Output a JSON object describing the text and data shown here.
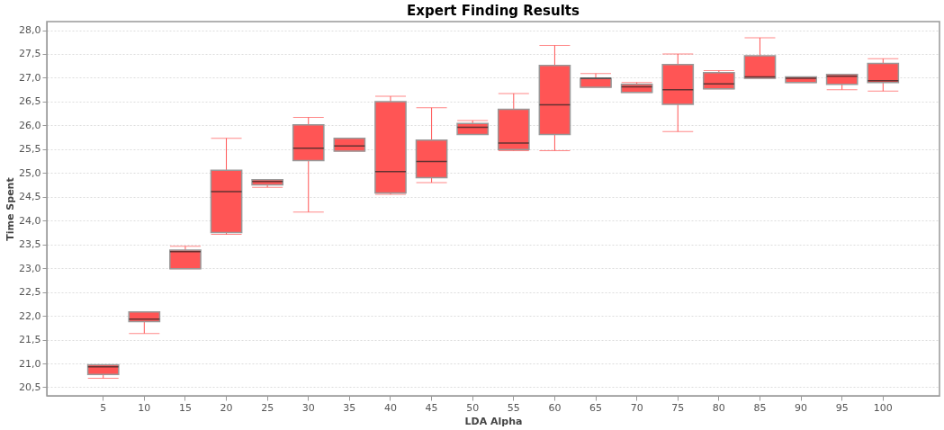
{
  "chart_data": {
    "type": "box",
    "title": "Expert Finding Results",
    "xlabel": "LDA Alpha",
    "ylabel": "Time Spent",
    "categories": [
      "5",
      "10",
      "15",
      "20",
      "25",
      "30",
      "35",
      "40",
      "45",
      "50",
      "55",
      "60",
      "65",
      "70",
      "75",
      "80",
      "85",
      "90",
      "95",
      "100"
    ],
    "series": [
      {
        "color": "#ff5555",
        "boxes": [
          {
            "low": 20.69,
            "q1": 20.77,
            "median": 20.93,
            "q3": 20.97,
            "high": 20.97
          },
          {
            "low": 21.63,
            "q1": 21.88,
            "median": 21.93,
            "q3": 22.08,
            "high": 22.08
          },
          {
            "low": 22.99,
            "q1": 22.99,
            "median": 23.35,
            "q3": 23.38,
            "high": 23.46
          },
          {
            "low": 23.71,
            "q1": 23.75,
            "median": 24.61,
            "q3": 25.06,
            "high": 25.73
          },
          {
            "low": 24.7,
            "q1": 24.75,
            "median": 24.82,
            "q3": 24.86,
            "high": 24.86
          },
          {
            "low": 24.18,
            "q1": 25.26,
            "median": 25.52,
            "q3": 26.01,
            "high": 26.17
          },
          {
            "low": 25.46,
            "q1": 25.46,
            "median": 25.57,
            "q3": 25.73,
            "high": 25.73
          },
          {
            "low": 24.55,
            "q1": 24.58,
            "median": 25.03,
            "q3": 26.5,
            "high": 26.61
          },
          {
            "low": 24.8,
            "q1": 24.9,
            "median": 25.24,
            "q3": 25.69,
            "high": 26.37
          },
          {
            "low": 25.81,
            "q1": 25.81,
            "median": 25.96,
            "q3": 26.04,
            "high": 26.1
          },
          {
            "low": 25.47,
            "q1": 25.49,
            "median": 25.63,
            "q3": 26.34,
            "high": 26.67
          },
          {
            "low": 25.47,
            "q1": 25.81,
            "median": 26.43,
            "q3": 27.26,
            "high": 27.68
          },
          {
            "low": 26.8,
            "q1": 26.8,
            "median": 26.99,
            "q3": 26.99,
            "high": 27.09
          },
          {
            "low": 26.69,
            "q1": 26.69,
            "median": 26.81,
            "q3": 26.86,
            "high": 26.9
          },
          {
            "low": 25.87,
            "q1": 26.44,
            "median": 26.75,
            "q3": 27.28,
            "high": 27.5
          },
          {
            "low": 26.77,
            "q1": 26.77,
            "median": 26.87,
            "q3": 27.11,
            "high": 27.15
          },
          {
            "low": 26.99,
            "q1": 26.99,
            "median": 27.02,
            "q3": 27.46,
            "high": 27.84
          },
          {
            "low": 26.9,
            "q1": 26.9,
            "median": 26.99,
            "q3": 27.02,
            "high": 27.02
          },
          {
            "low": 26.75,
            "q1": 26.86,
            "median": 27.03,
            "q3": 27.07,
            "high": 27.07
          },
          {
            "low": 26.72,
            "q1": 26.9,
            "median": 26.94,
            "q3": 27.3,
            "high": 27.4
          }
        ]
      }
    ],
    "ylim": [
      20.32,
      28.18
    ],
    "yticks": [
      {
        "value": 20.5,
        "label": "20,5"
      },
      {
        "value": 21.0,
        "label": "21,0"
      },
      {
        "value": 21.5,
        "label": "21,5"
      },
      {
        "value": 22.0,
        "label": "22,0"
      },
      {
        "value": 22.5,
        "label": "22,5"
      },
      {
        "value": 23.0,
        "label": "23,0"
      },
      {
        "value": 23.5,
        "label": "23,5"
      },
      {
        "value": 24.0,
        "label": "24,0"
      },
      {
        "value": 24.5,
        "label": "24,5"
      },
      {
        "value": 25.0,
        "label": "25,0"
      },
      {
        "value": 25.5,
        "label": "25,5"
      },
      {
        "value": 26.0,
        "label": "26,0"
      },
      {
        "value": 26.5,
        "label": "26,5"
      },
      {
        "value": 27.0,
        "label": "27,0"
      },
      {
        "value": 27.5,
        "label": "27,5"
      },
      {
        "value": 28.0,
        "label": "28,0"
      }
    ],
    "grid": "y"
  }
}
